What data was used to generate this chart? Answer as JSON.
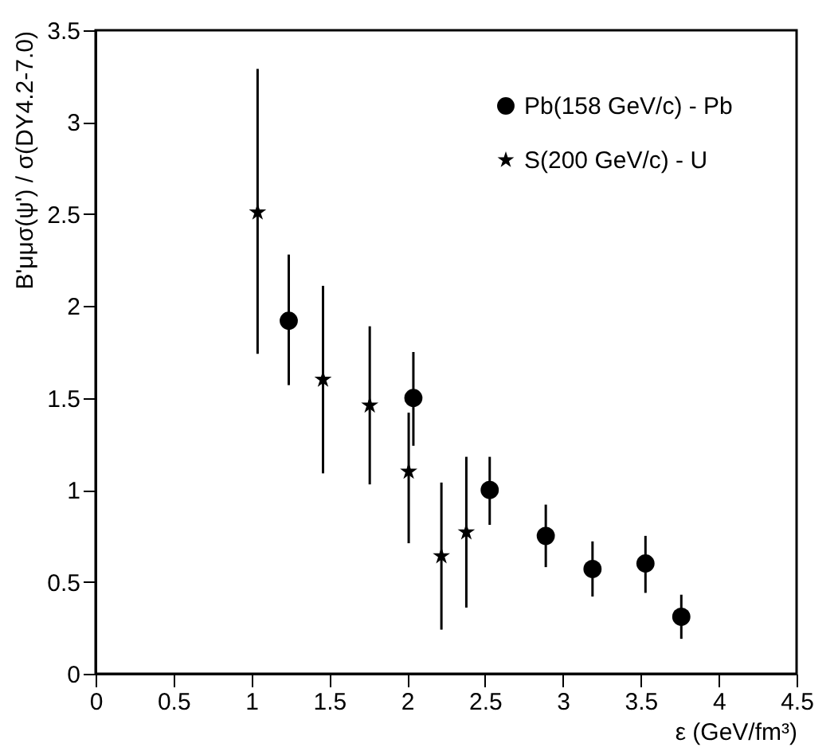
{
  "chart_data": {
    "type": "scatter",
    "xlabel": "ε  (GeV/fm³)",
    "ylabel": "B'μμσ(ψ') / σ(DY4.2-7.0)",
    "xlim": [
      0,
      4.5
    ],
    "xticks": [
      0,
      0.5,
      1,
      1.5,
      2,
      2.5,
      3,
      3.5,
      4,
      4.5
    ],
    "ylim": [
      0,
      3.5
    ],
    "yticks": [
      0,
      0.5,
      1,
      1.5,
      2,
      2.5,
      3,
      3.5
    ],
    "grid": false,
    "legend": "top right",
    "series": [
      {
        "name": "Pb(158 GeV/c) - Pb",
        "color": "#000000",
        "marker": "circle",
        "x": [
          1.24,
          2.04,
          2.53,
          2.89,
          3.19,
          3.53,
          3.76
        ],
        "values": [
          1.92,
          1.5,
          1.0,
          0.75,
          0.57,
          0.6,
          0.31
        ],
        "errors": [
          [
            1.57,
            2.28
          ],
          [
            1.24,
            1.75
          ],
          [
            0.81,
            1.18
          ],
          [
            0.58,
            0.92
          ],
          [
            0.42,
            0.72
          ],
          [
            0.44,
            0.75
          ],
          [
            0.19,
            0.43
          ]
        ]
      },
      {
        "name": "S(200 GeV/c) - U",
        "color": "#000000",
        "marker": "star",
        "x": [
          1.04,
          1.46,
          1.76,
          2.01,
          2.22,
          2.38
        ],
        "values": [
          2.51,
          1.6,
          1.46,
          1.1,
          0.64,
          0.77
        ],
        "errors": [
          [
            1.74,
            3.29
          ],
          [
            1.09,
            2.11
          ],
          [
            1.03,
            1.89
          ],
          [
            0.71,
            1.42
          ],
          [
            0.24,
            1.04
          ],
          [
            0.36,
            1.18
          ]
        ]
      }
    ]
  }
}
